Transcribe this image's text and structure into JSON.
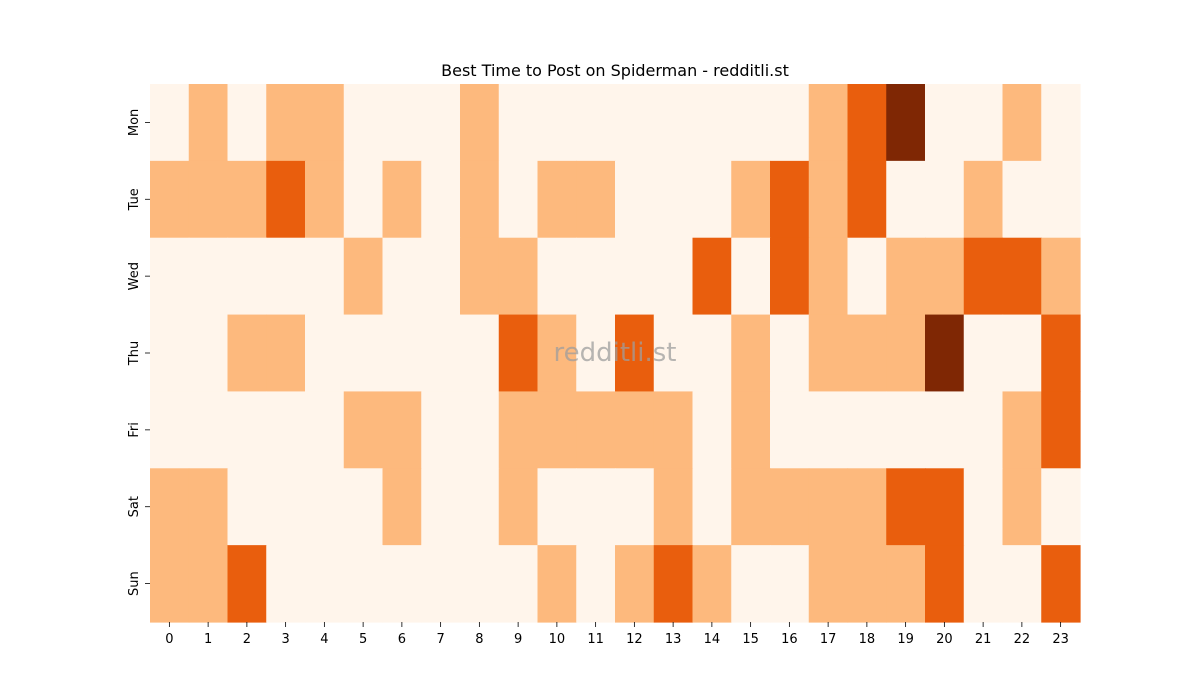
{
  "chart_data": {
    "type": "heatmap",
    "title": "Best Time to Post on Spiderman - redditli.st",
    "watermark": "redditli.st",
    "xlabel": "",
    "ylabel": "",
    "x_categories": [
      "0",
      "1",
      "2",
      "3",
      "4",
      "5",
      "6",
      "7",
      "8",
      "9",
      "10",
      "11",
      "12",
      "13",
      "14",
      "15",
      "16",
      "17",
      "18",
      "19",
      "20",
      "21",
      "22",
      "23"
    ],
    "y_categories": [
      "Mon",
      "Tue",
      "Wed",
      "Thu",
      "Fri",
      "Sat",
      "Sun"
    ],
    "values": [
      [
        0,
        1,
        0,
        1,
        1,
        0,
        0,
        0,
        1,
        0,
        0,
        0,
        0,
        0,
        0,
        0,
        0,
        1,
        2,
        3,
        0,
        0,
        1,
        0
      ],
      [
        1,
        1,
        1,
        2,
        1,
        0,
        1,
        0,
        1,
        0,
        1,
        1,
        0,
        0,
        0,
        1,
        2,
        1,
        2,
        0,
        0,
        1,
        0,
        0
      ],
      [
        0,
        0,
        0,
        0,
        0,
        1,
        0,
        0,
        1,
        1,
        0,
        0,
        0,
        0,
        2,
        0,
        2,
        1,
        0,
        1,
        1,
        2,
        2,
        1
      ],
      [
        0,
        0,
        1,
        1,
        0,
        0,
        0,
        0,
        0,
        2,
        1,
        0,
        2,
        0,
        0,
        1,
        0,
        1,
        1,
        1,
        3,
        0,
        0,
        2
      ],
      [
        0,
        0,
        0,
        0,
        0,
        1,
        1,
        0,
        0,
        1,
        1,
        1,
        1,
        1,
        0,
        1,
        0,
        0,
        0,
        0,
        0,
        0,
        1,
        2
      ],
      [
        1,
        1,
        0,
        0,
        0,
        0,
        1,
        0,
        0,
        1,
        0,
        0,
        0,
        1,
        0,
        1,
        1,
        1,
        1,
        2,
        2,
        0,
        1,
        0
      ],
      [
        1,
        1,
        2,
        0,
        0,
        0,
        0,
        0,
        0,
        0,
        1,
        0,
        1,
        2,
        1,
        0,
        0,
        1,
        1,
        1,
        2,
        0,
        0,
        2
      ]
    ],
    "colormap": [
      "#fff5eb",
      "#fdb97d",
      "#e95e0d",
      "#7f2704"
    ],
    "legend": "none"
  }
}
